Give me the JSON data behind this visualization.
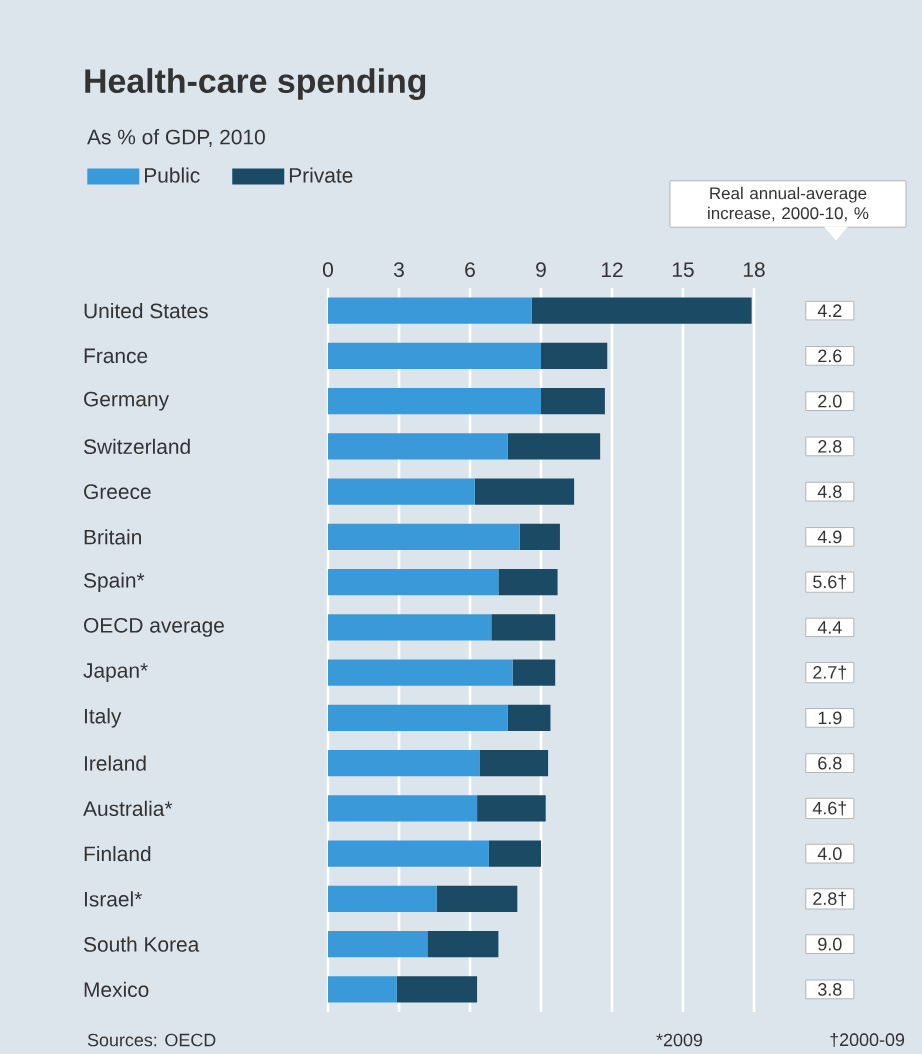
{
  "chart_data": {
    "type": "bar",
    "orientation": "horizontal",
    "stacked": true,
    "title": "Health-care spending",
    "subtitle": "As % of GDP, 2010",
    "categories": [
      "United States",
      "France",
      "Germany",
      "Switzerland",
      "Greece",
      "Britain",
      "Spain*",
      "OECD average",
      "Japan*",
      "Italy",
      "Ireland",
      "Australia*",
      "Finland",
      "Israel*",
      "South Korea",
      "Mexico"
    ],
    "series": [
      {
        "name": "Public",
        "color": "#3a9ad9",
        "values": [
          8.6,
          9.0,
          9.0,
          7.6,
          6.2,
          8.1,
          7.2,
          6.9,
          7.8,
          7.6,
          6.4,
          6.3,
          6.8,
          4.6,
          4.2,
          2.9
        ]
      },
      {
        "name": "Private",
        "color": "#1b4a64",
        "values": [
          9.3,
          2.8,
          2.7,
          3.9,
          4.2,
          1.7,
          2.5,
          2.7,
          1.8,
          1.8,
          2.9,
          2.9,
          2.2,
          3.4,
          3.0,
          3.4
        ]
      }
    ],
    "xlim": [
      0,
      18
    ],
    "xticks": [
      0,
      3,
      6,
      9,
      12,
      15,
      18
    ],
    "grid": "x",
    "legend": "top left",
    "annotations": [
      "Real annual-average increase, 2000-10, %",
      "Sources: OECD",
      "*2009",
      "†2000-09",
      "4.2",
      "2.6",
      "2.0",
      "2.8",
      "4.8",
      "4.9",
      "5.6†",
      "4.4",
      "2.7†",
      "1.9",
      "6.8",
      "4.6†",
      "4.0",
      "2.8†",
      "9.0",
      "3.8"
    ]
  }
}
